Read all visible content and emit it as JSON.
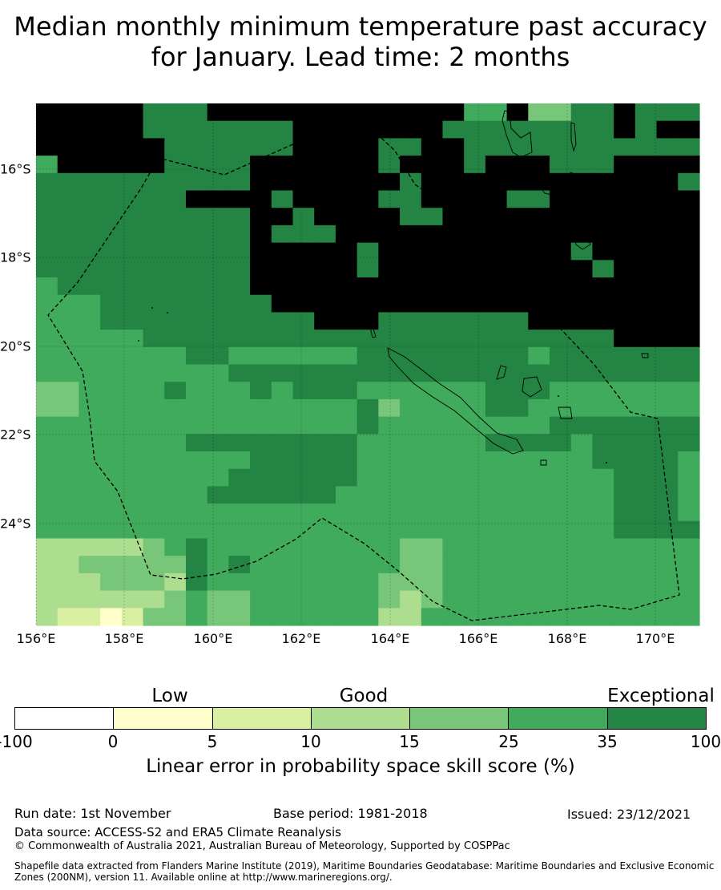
{
  "title": "Median monthly minimum temperature past accuracy for January. Lead time: 2 months",
  "map": {
    "lat_labels": [
      "16°S",
      "18°S",
      "20°S",
      "22°S",
      "24°S"
    ],
    "lon_labels": [
      "156°E",
      "158°E",
      "160°E",
      "162°E",
      "164°E",
      "166°E",
      "168°E",
      "170°E"
    ],
    "grid": [
      "7777766677777777777755744667666",
      "7777766666667777777666666667677",
      "7777776666667777667766666666666",
      "5777776666777777677767776667777",
      "6666666666777777767777777777776",
      "6666666777767777667777667777777",
      "6666666666776777766777777777777",
      "6666666666766677777777777777777",
      "6666666666777776777777777677777",
      "6666666666777776777777777767777",
      "5666666666777777777777777777777",
      "5556666666677777777777777777777",
      "5556666666666777666666677777777",
      "5555566666666666666666666667777",
      "5555555665555556666666656666666",
      "5555555556666666666666666666666",
      "4455556555656665555556665555555",
      "4455555555555556455556655555555",
      "5555555555555556555555556666666",
      "5555555666666665555556666566666",
      "5555555555666665555555555566665",
      "5555555556666665555555555556665",
      "5555555566666655555555555556665",
      "5555555555555555555555555556665",
      "5555555555555555555555555556666",
      "3333345655555555544555555555555",
      "3344444656555555544555555555555",
      "3334443655555555444555555555555",
      "3333334544555555434555555555555",
      "3221244544555555335555555555555"
    ],
    "colors": [
      "#ffffff",
      "#ffffcc",
      "#d9f0a3",
      "#addd8e",
      "#78c679",
      "#41ab5d",
      "#238443"
    ]
  },
  "colorbar": {
    "categories": [
      "Low",
      "Good",
      "Exceptional"
    ],
    "ticks": [
      "-100",
      "0",
      "5",
      "10",
      "15",
      "25",
      "35",
      "100"
    ],
    "label": "Linear error in probability space skill score (%)"
  },
  "footer": {
    "run_date": "Run date: 1st November",
    "base_period": "Base period: 1981-2018",
    "issued": "Issued: 23/12/2021",
    "data_source": "Data source: ACCESS-S2 and ERA5 Climate Reanalysis",
    "copyright": "© Commonwealth of Australia 2021, Australian Bureau of Meteorology, Supported by COSPPac",
    "shapefile": "Shapefile data extracted from Flanders Marine Institute (2019), Maritime Boundaries Geodatabase: Maritime Boundaries and Exclusive Economic Zones (200NM), version 11. Available online at http://www.marineregions.org/."
  }
}
